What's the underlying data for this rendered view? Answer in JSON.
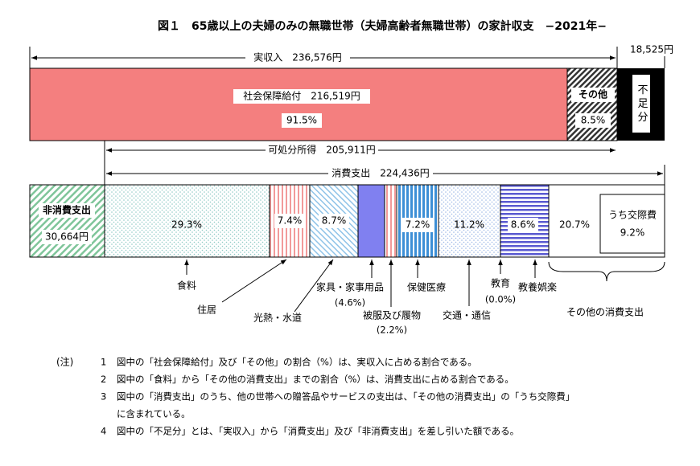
{
  "title": "図１　65歳以上の夫婦のみの無職世帯（夫婦高齢者無職世帯）の家計収支　−2021年−",
  "top_bar": {
    "actual_income": "実収入　236,576円",
    "deficit_amount": "18,525円",
    "social_security": "社会保障給付　216,519円",
    "social_security_pct": "91.5%",
    "other": "その他",
    "other_pct": "8.5%",
    "deficit": "不足分"
  },
  "disposable_income": "可処分所得　205,911円",
  "consumption": "消費支出　224,436円",
  "bottom_bar": {
    "non_consumption": "非消費支出",
    "non_consumption_amount": "30,664円",
    "food_pct": "29.3%",
    "housing_pct": "7.4%",
    "utilities_pct": "8.7%",
    "medical_pct": "7.2%",
    "transport_pct": "11.2%",
    "recreation_pct": "8.6%",
    "other_pct": "20.7%",
    "social_expenses": "うち交際費",
    "social_expenses_pct": "9.2%"
  },
  "labels": {
    "food": "食料",
    "housing": "住居",
    "utilities": "光熱・水道",
    "furniture": "家具・家事用品",
    "furniture_pct": "(4.6%)",
    "clothing": "被服及び履物",
    "clothing_pct": "(2.2%)",
    "medical": "保健医療",
    "transport": "交通・通信",
    "education": "教育",
    "education_pct": "(0.0%)",
    "recreation": "教養娯楽",
    "other": "その他の消費支出"
  },
  "notes": {
    "marker": "(注)",
    "items": [
      {
        "num": "1",
        "lines": [
          "図中の「社会保障給付」及び「その他」の割合（%）は、実収入に占める割合である。"
        ]
      },
      {
        "num": "2",
        "lines": [
          "図中の「食料」から「その他の消費支出」までの割合（%）は、消費支出に占める割合である。"
        ]
      },
      {
        "num": "3",
        "lines": [
          "図中の「消費支出」のうち、他の世帯への贈答品やサービスの支出は、「その他の消費支出」の「うち交際費」",
          "に含まれている。"
        ]
      },
      {
        "num": "4",
        "lines": [
          "図中の「不足分」とは、「実収入」から「消費支出」及び「非消費支出」を差し引いた額である。"
        ]
      }
    ]
  }
}
